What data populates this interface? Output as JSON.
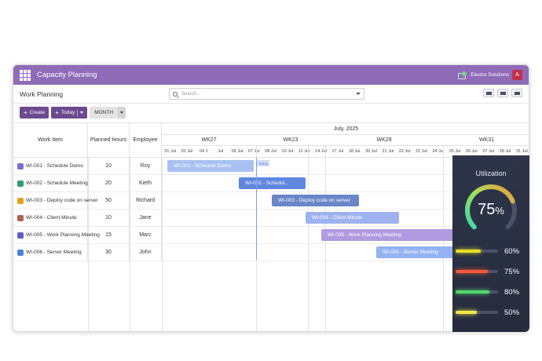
{
  "app": {
    "title": "Capacity Planning",
    "company": "Electra Solutions",
    "avatar_letter": "A",
    "page_title": "Work Planning",
    "search_placeholder": "Search..."
  },
  "toolbar": {
    "create_label": "Create",
    "today_label": "Today",
    "scale_label": "MONTH"
  },
  "columns": {
    "work_item": "Work Item",
    "planned_hours": "Planned Hours",
    "employee": "Employee"
  },
  "timeline": {
    "month": "July, 2025",
    "weeks": [
      "WK27",
      "WK23",
      "WK29",
      "WK31"
    ],
    "days": [
      "01 Jul",
      "02 Jul",
      "04 J",
      "Jul",
      "06 Jul",
      "07 Jul",
      "08 Jul",
      "10 Jul",
      "11 Jul",
      "14 Jul",
      "17 Jul",
      "18 Jul",
      "20 Jul",
      "21 Jul",
      "22 Jul",
      "21 Jul",
      "24 Jul",
      "25 Jul",
      "26 Jul",
      "27 Jul",
      "28 Jul",
      "31 Jul"
    ],
    "today_tag": "Today"
  },
  "rows": [
    {
      "item": "WI-001 - Schedule Demo",
      "hours": "10",
      "employee": "Roy",
      "bar": "WI-001 - Schedule Demo",
      "icon_color": "#7b6cd9"
    },
    {
      "item": "WI-002 - Schedule Meeting",
      "hours": "20",
      "employee": "Kieth",
      "bar": "WI-002 - Schedul...",
      "icon_color": "#2f9e6e"
    },
    {
      "item": "WI-003 - Deploy code on server",
      "hours": "50",
      "employee": "Richard",
      "bar": "WI-003 - Deploy code on server",
      "icon_color": "#e8a21a"
    },
    {
      "item": "WI-004 - Client Minute",
      "hours": "10",
      "employee": "Jane",
      "bar": "WI-004 - Client Minute",
      "icon_color": "#b0614a"
    },
    {
      "item": "WI-005 - Work Planning Meeting",
      "hours": "15",
      "employee": "Marc",
      "bar": "WI-005 - Work Planning Meeting",
      "icon_color": "#5a5fc7"
    },
    {
      "item": "WI-006 - Server Meeting",
      "hours": "30",
      "employee": "John",
      "bar": "WI-006 - Server Meeting",
      "icon_color": "#4e7fd9"
    }
  ],
  "bar_colors": [
    "#a9c1f2",
    "#5f86e0",
    "#6a86c8",
    "#9fb2f0",
    "#b09ae0",
    "#93b3f2"
  ],
  "utilization": {
    "title": "Utilization",
    "value": "75",
    "unit": "%",
    "gauge_fraction": 0.75,
    "bars": [
      {
        "label": "60%",
        "fraction": 0.6,
        "color": "#e6e02a"
      },
      {
        "label": "75%",
        "fraction": 0.75,
        "color": "#f05a3a"
      },
      {
        "label": "80%",
        "fraction": 0.8,
        "color": "#53d76b"
      },
      {
        "label": "50%",
        "fraction": 0.5,
        "color": "#f2e84b"
      }
    ]
  }
}
